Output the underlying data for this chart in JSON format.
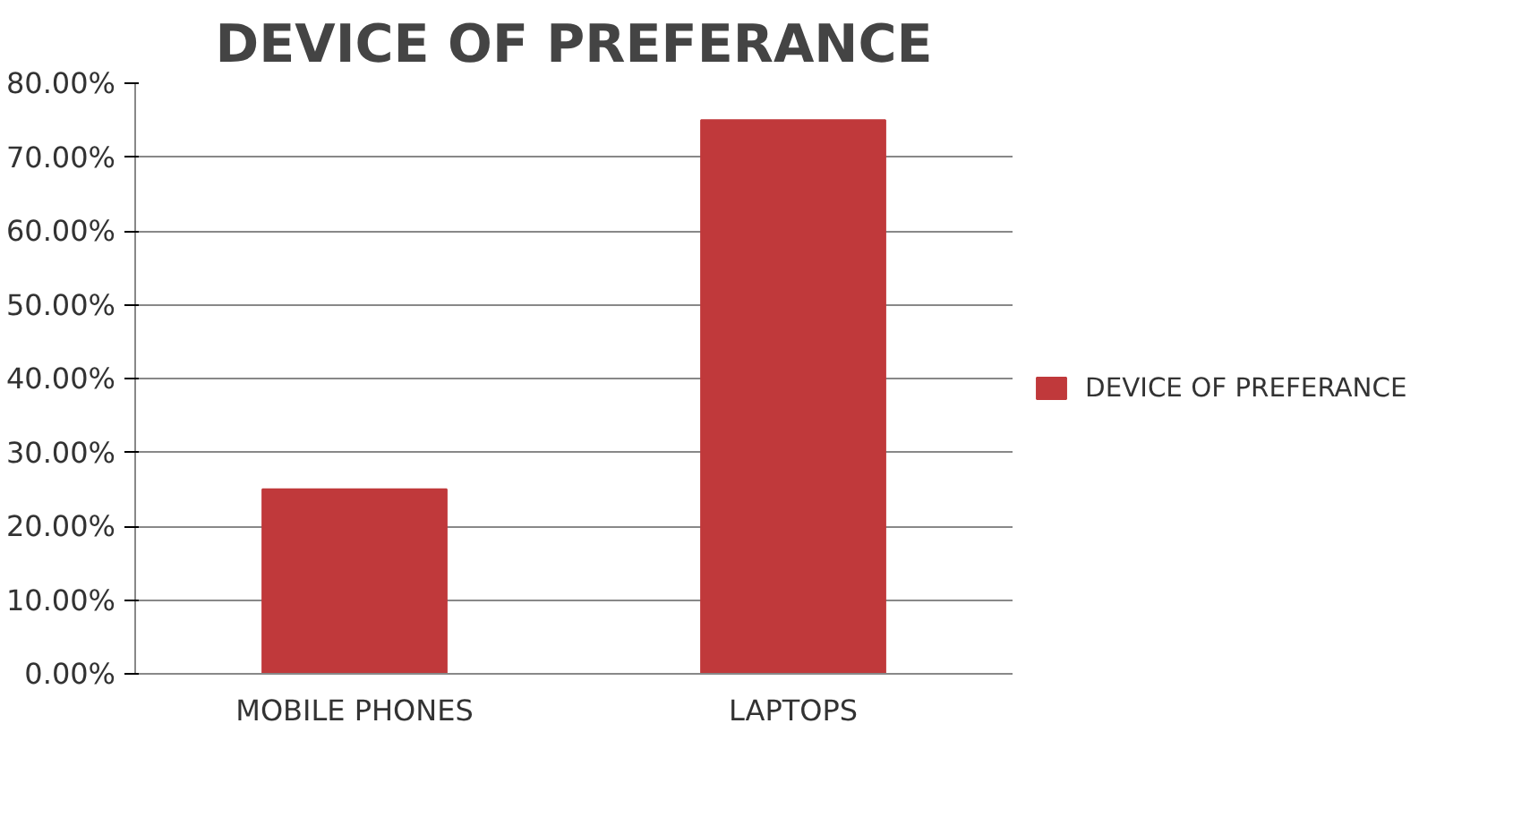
{
  "chart_data": {
    "type": "bar",
    "title": "DEVICE OF PREFERANCE",
    "categories": [
      "MOBILE PHONES",
      "LAPTOPS"
    ],
    "series": [
      {
        "name": "DEVICE OF PREFERANCE",
        "color": "#c0393b",
        "values": [
          25,
          75
        ]
      }
    ],
    "ylim": [
      0,
      80
    ],
    "yticks": [
      {
        "value": 0,
        "label": "0.00%"
      },
      {
        "value": 10,
        "label": "10.00%"
      },
      {
        "value": 20,
        "label": "20.00%"
      },
      {
        "value": 30,
        "label": "30.00%"
      },
      {
        "value": 40,
        "label": "40.00%"
      },
      {
        "value": 50,
        "label": "50.00%"
      },
      {
        "value": 60,
        "label": "60.00%"
      },
      {
        "value": 70,
        "label": "70.00%"
      },
      {
        "value": 80,
        "label": "80.00%"
      }
    ],
    "grid": "y",
    "legend": "right"
  }
}
